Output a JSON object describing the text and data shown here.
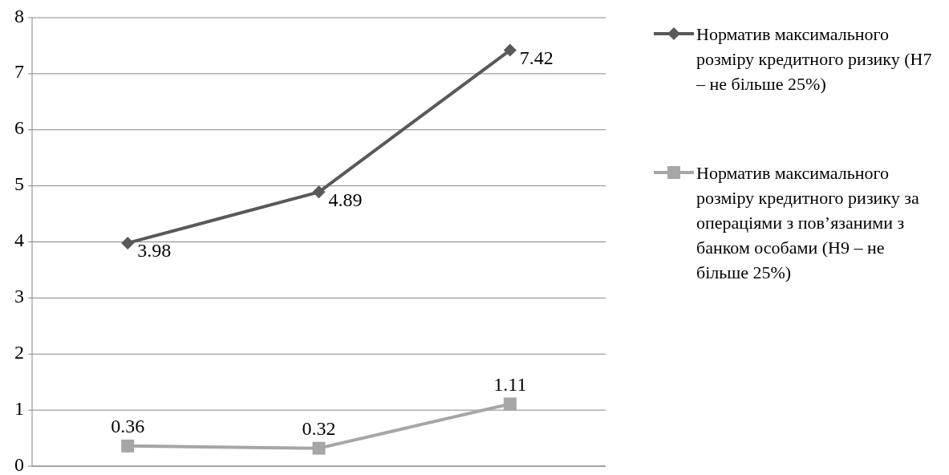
{
  "chart_data": {
    "type": "line",
    "categories": [
      null,
      null,
      null
    ],
    "series": [
      {
        "name": "Норматив максимального розміру кредитного ризику (Н7 – не більше 25%)",
        "color": "#595959",
        "values": [
          3.98,
          4.89,
          7.42
        ],
        "marker": "diamond"
      },
      {
        "name": "Норматив максимального розміру кредитного ризику за операціями з пов’язаними з банком особами (Н9 – не більше 25%)",
        "color": "#a6a6a6",
        "values": [
          0.36,
          0.32,
          1.11
        ],
        "marker": "square"
      }
    ],
    "ylim": [
      0,
      8
    ],
    "yticks": [
      0,
      1,
      2,
      3,
      4,
      5,
      6,
      7,
      8
    ],
    "grid": "y",
    "legend": "right",
    "data_labels": true
  }
}
